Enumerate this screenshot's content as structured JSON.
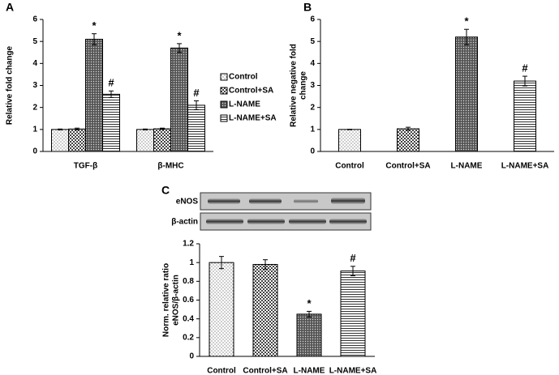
{
  "chart_data": [
    {
      "type": "bar",
      "panel": "A",
      "ylabel": [
        "Relative fold change"
      ],
      "categories": [
        "TGF-β",
        "β-MHC"
      ],
      "series": [
        {
          "name": "Control",
          "color": "#000000",
          "pattern": "dots",
          "values": [
            1,
            1
          ],
          "errors": [
            0.02,
            0.02
          ]
        },
        {
          "name": "Control+SA",
          "color": "#000000",
          "pattern": "checker",
          "values": [
            1.02,
            1.03
          ],
          "errors": [
            0.04,
            0.03
          ]
        },
        {
          "name": "L-NAME",
          "color": "#000000",
          "pattern": "dense-dots",
          "values": [
            5.1,
            4.7
          ],
          "errors": [
            0.25,
            0.2
          ],
          "annotations": [
            "*",
            "*"
          ]
        },
        {
          "name": "L-NAME+SA",
          "color": "#000000",
          "pattern": "hlines",
          "values": [
            2.6,
            2.1
          ],
          "errors": [
            0.15,
            0.2
          ],
          "annotations": [
            "#",
            "#"
          ]
        }
      ],
      "ylim": [
        0,
        6
      ],
      "yticks": [
        0,
        1,
        2,
        3,
        4,
        5,
        6
      ],
      "grid": false,
      "legend": "right"
    },
    {
      "type": "bar",
      "panel": "B",
      "ylabel": [
        "Relative negative fold",
        "change"
      ],
      "categories": [
        "Control",
        "Control+SA",
        "L-NAME",
        "L-NAME+SA"
      ],
      "values": [
        1,
        1.03,
        5.2,
        3.2
      ],
      "errors": [
        0.01,
        0.07,
        0.35,
        0.22
      ],
      "annotations": [
        null,
        null,
        "*",
        "#"
      ],
      "patterns": [
        "dots",
        "checker",
        "dense-dots",
        "hlines"
      ],
      "color": "#000000",
      "ylim": [
        0,
        6
      ],
      "yticks": [
        0,
        1,
        2,
        3,
        4,
        5,
        6
      ],
      "grid": false
    },
    {
      "type": "bar",
      "panel": "C",
      "ylabel": [
        "Norm. relative ratio",
        "eNOS/β-actin"
      ],
      "blot_labels": [
        "eNOS",
        "β-actin"
      ],
      "categories": [
        "Control",
        "Control+SA",
        "L-NAME",
        "L-NAME+SA"
      ],
      "values": [
        1,
        0.98,
        0.45,
        0.91
      ],
      "errors": [
        0.065,
        0.05,
        0.03,
        0.05
      ],
      "annotations": [
        null,
        null,
        "*",
        "#"
      ],
      "patterns": [
        "dots",
        "checker",
        "dense-dots",
        "hlines"
      ],
      "color": "#000000",
      "ylim": [
        0,
        1.2
      ],
      "yticks": [
        0,
        0.2,
        0.4,
        0.6,
        0.8,
        1,
        1.2
      ],
      "grid": false
    }
  ]
}
